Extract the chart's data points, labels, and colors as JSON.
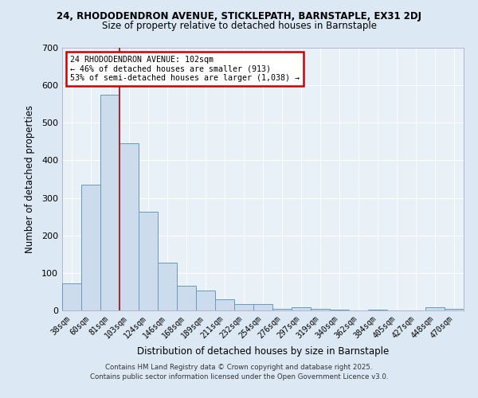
{
  "title1": "24, RHODODENDRON AVENUE, STICKLEPATH, BARNSTAPLE, EX31 2DJ",
  "title2": "Size of property relative to detached houses in Barnstaple",
  "xlabel": "Distribution of detached houses by size in Barnstaple",
  "ylabel": "Number of detached properties",
  "categories": [
    "38sqm",
    "60sqm",
    "81sqm",
    "103sqm",
    "124sqm",
    "146sqm",
    "168sqm",
    "189sqm",
    "211sqm",
    "232sqm",
    "254sqm",
    "276sqm",
    "297sqm",
    "319sqm",
    "340sqm",
    "362sqm",
    "384sqm",
    "405sqm",
    "427sqm",
    "448sqm",
    "470sqm"
  ],
  "values": [
    72,
    335,
    575,
    445,
    262,
    127,
    65,
    53,
    30,
    18,
    16,
    5,
    8,
    5,
    3,
    0,
    2,
    0,
    0,
    8,
    5
  ],
  "bar_color": "#ccdcec",
  "bar_edge_color": "#6699bb",
  "vline_color": "#993333",
  "vline_x_index": 2,
  "annotation_text": "24 RHODODENDRON AVENUE: 102sqm\n← 46% of detached houses are smaller (913)\n53% of semi-detached houses are larger (1,038) →",
  "annotation_box_color": "white",
  "annotation_box_edge": "#cc0000",
  "footer1": "Contains HM Land Registry data © Crown copyright and database right 2025.",
  "footer2": "Contains public sector information licensed under the Open Government Licence v3.0.",
  "ylim": [
    0,
    700
  ],
  "yticks": [
    0,
    100,
    200,
    300,
    400,
    500,
    600,
    700
  ],
  "bg_color": "#dce8f4",
  "plot_bg": "#e8f0f8",
  "grid_color": "#ffffff"
}
